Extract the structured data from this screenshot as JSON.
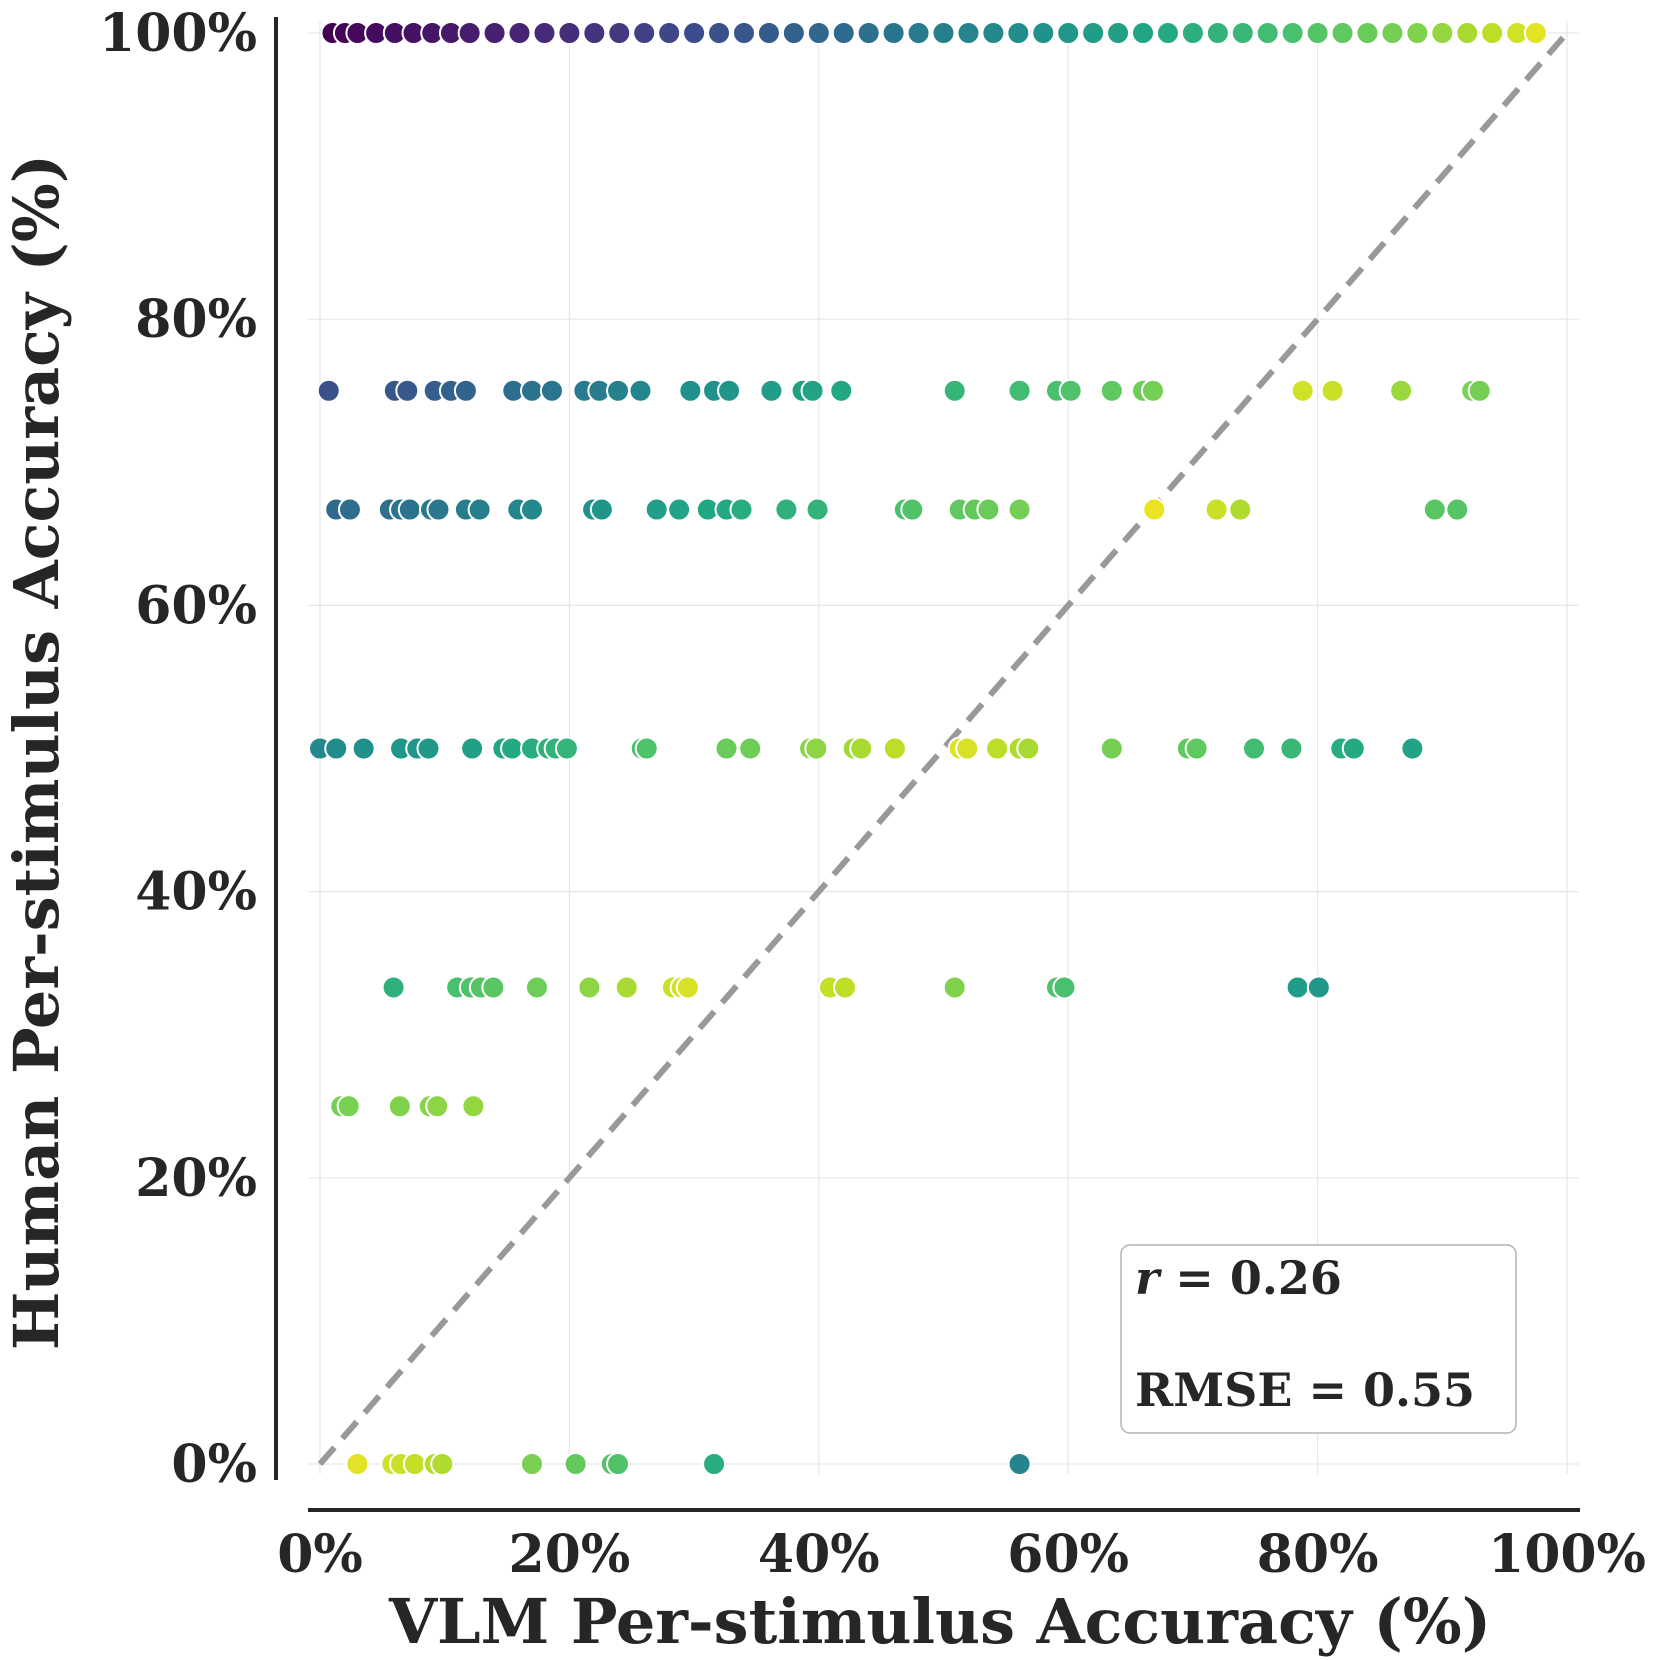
{
  "chart_data": {
    "type": "scatter",
    "title": "",
    "xlabel": "VLM Per-stimulus Accuracy (%)",
    "ylabel": "Human Per-stimulus Accuracy (%)",
    "xlim": [
      0,
      100
    ],
    "ylim": [
      0,
      100
    ],
    "x_ticks": [
      "0%",
      "20%",
      "40%",
      "60%",
      "80%",
      "100%"
    ],
    "y_ticks": [
      "0%",
      "20%",
      "40%",
      "60%",
      "80%",
      "100%"
    ],
    "grid": true,
    "reference_line": "y = x (dashed, gray)",
    "color_scale": "viridis",
    "stats": {
      "r": "r = 0.26",
      "rmse": "RMSE = 0.55"
    },
    "points": [
      {
        "x": 1.0,
        "y": 100,
        "c": 0.0
      },
      {
        "x": 2.0,
        "y": 100,
        "c": 0.01
      },
      {
        "x": 3.0,
        "y": 100,
        "c": 0.02
      },
      {
        "x": 4.5,
        "y": 100,
        "c": 0.03
      },
      {
        "x": 6.0,
        "y": 100,
        "c": 0.04
      },
      {
        "x": 7.5,
        "y": 100,
        "c": 0.05
      },
      {
        "x": 9.0,
        "y": 100,
        "c": 0.06
      },
      {
        "x": 10.5,
        "y": 100,
        "c": 0.07
      },
      {
        "x": 12.0,
        "y": 100,
        "c": 0.08
      },
      {
        "x": 14.0,
        "y": 100,
        "c": 0.09
      },
      {
        "x": 16.0,
        "y": 100,
        "c": 0.1
      },
      {
        "x": 18.0,
        "y": 100,
        "c": 0.12
      },
      {
        "x": 20.0,
        "y": 100,
        "c": 0.13
      },
      {
        "x": 22.0,
        "y": 100,
        "c": 0.15
      },
      {
        "x": 24.0,
        "y": 100,
        "c": 0.17
      },
      {
        "x": 26.0,
        "y": 100,
        "c": 0.19
      },
      {
        "x": 28.0,
        "y": 100,
        "c": 0.21
      },
      {
        "x": 30.0,
        "y": 100,
        "c": 0.23
      },
      {
        "x": 32.0,
        "y": 100,
        "c": 0.25
      },
      {
        "x": 34.0,
        "y": 100,
        "c": 0.27
      },
      {
        "x": 36.0,
        "y": 100,
        "c": 0.29
      },
      {
        "x": 38.0,
        "y": 100,
        "c": 0.31
      },
      {
        "x": 40.0,
        "y": 100,
        "c": 0.33
      },
      {
        "x": 42.0,
        "y": 100,
        "c": 0.35
      },
      {
        "x": 44.0,
        "y": 100,
        "c": 0.37
      },
      {
        "x": 46.0,
        "y": 100,
        "c": 0.39
      },
      {
        "x": 48.0,
        "y": 100,
        "c": 0.41
      },
      {
        "x": 50.0,
        "y": 100,
        "c": 0.43
      },
      {
        "x": 52.0,
        "y": 100,
        "c": 0.45
      },
      {
        "x": 54.0,
        "y": 100,
        "c": 0.47
      },
      {
        "x": 56.0,
        "y": 100,
        "c": 0.49
      },
      {
        "x": 58.0,
        "y": 100,
        "c": 0.51
      },
      {
        "x": 60.0,
        "y": 100,
        "c": 0.53
      },
      {
        "x": 62.0,
        "y": 100,
        "c": 0.55
      },
      {
        "x": 64.0,
        "y": 100,
        "c": 0.57
      },
      {
        "x": 66.0,
        "y": 100,
        "c": 0.59
      },
      {
        "x": 68.0,
        "y": 100,
        "c": 0.61
      },
      {
        "x": 70.0,
        "y": 100,
        "c": 0.63
      },
      {
        "x": 72.0,
        "y": 100,
        "c": 0.65
      },
      {
        "x": 74.0,
        "y": 100,
        "c": 0.67
      },
      {
        "x": 76.0,
        "y": 100,
        "c": 0.69
      },
      {
        "x": 78.0,
        "y": 100,
        "c": 0.71
      },
      {
        "x": 80.0,
        "y": 100,
        "c": 0.73
      },
      {
        "x": 82.0,
        "y": 100,
        "c": 0.75
      },
      {
        "x": 84.0,
        "y": 100,
        "c": 0.77
      },
      {
        "x": 86.0,
        "y": 100,
        "c": 0.79
      },
      {
        "x": 88.0,
        "y": 100,
        "c": 0.81
      },
      {
        "x": 90.0,
        "y": 100,
        "c": 0.84
      },
      {
        "x": 92.0,
        "y": 100,
        "c": 0.87
      },
      {
        "x": 94.0,
        "y": 100,
        "c": 0.9
      },
      {
        "x": 96.0,
        "y": 100,
        "c": 0.93
      },
      {
        "x": 97.5,
        "y": 100,
        "c": 0.96
      },
      {
        "x": 0.7,
        "y": 75,
        "c": 0.25
      },
      {
        "x": 6.0,
        "y": 75,
        "c": 0.27
      },
      {
        "x": 7.0,
        "y": 75,
        "c": 0.28
      },
      {
        "x": 9.2,
        "y": 75,
        "c": 0.3
      },
      {
        "x": 10.5,
        "y": 75,
        "c": 0.31
      },
      {
        "x": 11.7,
        "y": 75,
        "c": 0.32
      },
      {
        "x": 15.5,
        "y": 75,
        "c": 0.36
      },
      {
        "x": 17.0,
        "y": 75,
        "c": 0.38
      },
      {
        "x": 18.6,
        "y": 75,
        "c": 0.39
      },
      {
        "x": 21.2,
        "y": 75,
        "c": 0.41
      },
      {
        "x": 22.4,
        "y": 75,
        "c": 0.42
      },
      {
        "x": 23.9,
        "y": 75,
        "c": 0.44
      },
      {
        "x": 25.7,
        "y": 75,
        "c": 0.46
      },
      {
        "x": 29.7,
        "y": 75,
        "c": 0.5
      },
      {
        "x": 31.6,
        "y": 75,
        "c": 0.51
      },
      {
        "x": 32.8,
        "y": 75,
        "c": 0.52
      },
      {
        "x": 36.2,
        "y": 75,
        "c": 0.55
      },
      {
        "x": 38.7,
        "y": 75,
        "c": 0.57
      },
      {
        "x": 39.5,
        "y": 75,
        "c": 0.58
      },
      {
        "x": 41.8,
        "y": 75,
        "c": 0.6
      },
      {
        "x": 50.9,
        "y": 75,
        "c": 0.66
      },
      {
        "x": 56.1,
        "y": 75,
        "c": 0.69
      },
      {
        "x": 59.1,
        "y": 75,
        "c": 0.71
      },
      {
        "x": 60.2,
        "y": 75,
        "c": 0.72
      },
      {
        "x": 63.5,
        "y": 75,
        "c": 0.75
      },
      {
        "x": 66.0,
        "y": 75,
        "c": 0.78
      },
      {
        "x": 66.8,
        "y": 75,
        "c": 0.79
      },
      {
        "x": 78.8,
        "y": 75,
        "c": 0.93
      },
      {
        "x": 81.2,
        "y": 75,
        "c": 0.92
      },
      {
        "x": 86.7,
        "y": 75,
        "c": 0.85
      },
      {
        "x": 92.4,
        "y": 75,
        "c": 0.8
      },
      {
        "x": 93.0,
        "y": 75,
        "c": 0.79
      },
      {
        "x": 1.3,
        "y": 66.7,
        "c": 0.35
      },
      {
        "x": 2.4,
        "y": 66.7,
        "c": 0.36
      },
      {
        "x": 5.6,
        "y": 66.7,
        "c": 0.37
      },
      {
        "x": 6.5,
        "y": 66.7,
        "c": 0.38
      },
      {
        "x": 7.2,
        "y": 66.7,
        "c": 0.38
      },
      {
        "x": 8.9,
        "y": 66.7,
        "c": 0.4
      },
      {
        "x": 9.5,
        "y": 66.7,
        "c": 0.4
      },
      {
        "x": 11.7,
        "y": 66.7,
        "c": 0.42
      },
      {
        "x": 12.8,
        "y": 66.7,
        "c": 0.43
      },
      {
        "x": 15.9,
        "y": 66.7,
        "c": 0.46
      },
      {
        "x": 17.0,
        "y": 66.7,
        "c": 0.47
      },
      {
        "x": 21.9,
        "y": 66.7,
        "c": 0.51
      },
      {
        "x": 22.6,
        "y": 66.7,
        "c": 0.52
      },
      {
        "x": 27.0,
        "y": 66.7,
        "c": 0.56
      },
      {
        "x": 28.8,
        "y": 66.7,
        "c": 0.58
      },
      {
        "x": 31.1,
        "y": 66.7,
        "c": 0.6
      },
      {
        "x": 32.6,
        "y": 66.7,
        "c": 0.61
      },
      {
        "x": 33.8,
        "y": 66.7,
        "c": 0.62
      },
      {
        "x": 37.4,
        "y": 66.7,
        "c": 0.64
      },
      {
        "x": 39.9,
        "y": 66.7,
        "c": 0.65
      },
      {
        "x": 46.9,
        "y": 66.7,
        "c": 0.71
      },
      {
        "x": 47.5,
        "y": 66.7,
        "c": 0.72
      },
      {
        "x": 51.3,
        "y": 66.7,
        "c": 0.75
      },
      {
        "x": 52.5,
        "y": 66.7,
        "c": 0.76
      },
      {
        "x": 53.6,
        "y": 66.7,
        "c": 0.77
      },
      {
        "x": 56.1,
        "y": 66.7,
        "c": 0.79
      },
      {
        "x": 66.9,
        "y": 66.7,
        "c": 0.97
      },
      {
        "x": 71.9,
        "y": 66.7,
        "c": 0.92
      },
      {
        "x": 73.8,
        "y": 66.7,
        "c": 0.88
      },
      {
        "x": 89.4,
        "y": 66.7,
        "c": 0.74
      },
      {
        "x": 91.2,
        "y": 66.7,
        "c": 0.73
      },
      {
        "x": 0.0,
        "y": 50,
        "c": 0.47
      },
      {
        "x": 1.3,
        "y": 50,
        "c": 0.48
      },
      {
        "x": 3.5,
        "y": 50,
        "c": 0.5
      },
      {
        "x": 6.5,
        "y": 50,
        "c": 0.52
      },
      {
        "x": 7.8,
        "y": 50,
        "c": 0.53
      },
      {
        "x": 8.7,
        "y": 50,
        "c": 0.54
      },
      {
        "x": 12.2,
        "y": 50,
        "c": 0.57
      },
      {
        "x": 14.7,
        "y": 50,
        "c": 0.6
      },
      {
        "x": 15.4,
        "y": 50,
        "c": 0.61
      },
      {
        "x": 17.0,
        "y": 50,
        "c": 0.62
      },
      {
        "x": 18.3,
        "y": 50,
        "c": 0.64
      },
      {
        "x": 18.9,
        "y": 50,
        "c": 0.65
      },
      {
        "x": 19.8,
        "y": 50,
        "c": 0.66
      },
      {
        "x": 25.8,
        "y": 50,
        "c": 0.71
      },
      {
        "x": 26.2,
        "y": 50,
        "c": 0.72
      },
      {
        "x": 32.6,
        "y": 50,
        "c": 0.77
      },
      {
        "x": 34.5,
        "y": 50,
        "c": 0.78
      },
      {
        "x": 39.3,
        "y": 50,
        "c": 0.82
      },
      {
        "x": 39.8,
        "y": 50,
        "c": 0.83
      },
      {
        "x": 42.8,
        "y": 50,
        "c": 0.86
      },
      {
        "x": 43.4,
        "y": 50,
        "c": 0.87
      },
      {
        "x": 46.1,
        "y": 50,
        "c": 0.9
      },
      {
        "x": 51.3,
        "y": 50,
        "c": 0.95
      },
      {
        "x": 51.9,
        "y": 50,
        "c": 0.94
      },
      {
        "x": 54.3,
        "y": 50,
        "c": 0.9
      },
      {
        "x": 56.1,
        "y": 50,
        "c": 0.88
      },
      {
        "x": 56.8,
        "y": 50,
        "c": 0.87
      },
      {
        "x": 63.5,
        "y": 50,
        "c": 0.79
      },
      {
        "x": 69.6,
        "y": 50,
        "c": 0.75
      },
      {
        "x": 70.3,
        "y": 50,
        "c": 0.75
      },
      {
        "x": 74.9,
        "y": 50,
        "c": 0.69
      },
      {
        "x": 77.9,
        "y": 50,
        "c": 0.67
      },
      {
        "x": 81.9,
        "y": 50,
        "c": 0.62
      },
      {
        "x": 82.9,
        "y": 50,
        "c": 0.61
      },
      {
        "x": 87.6,
        "y": 50,
        "c": 0.58
      },
      {
        "x": 5.9,
        "y": 33.3,
        "c": 0.64
      },
      {
        "x": 11.0,
        "y": 33.3,
        "c": 0.71
      },
      {
        "x": 12.1,
        "y": 33.3,
        "c": 0.72
      },
      {
        "x": 12.9,
        "y": 33.3,
        "c": 0.73
      },
      {
        "x": 13.9,
        "y": 33.3,
        "c": 0.74
      },
      {
        "x": 17.4,
        "y": 33.3,
        "c": 0.78
      },
      {
        "x": 21.6,
        "y": 33.3,
        "c": 0.83
      },
      {
        "x": 24.6,
        "y": 33.3,
        "c": 0.87
      },
      {
        "x": 28.3,
        "y": 33.3,
        "c": 0.92
      },
      {
        "x": 29.0,
        "y": 33.3,
        "c": 0.93
      },
      {
        "x": 29.5,
        "y": 33.3,
        "c": 0.94
      },
      {
        "x": 40.9,
        "y": 33.3,
        "c": 0.91
      },
      {
        "x": 42.1,
        "y": 33.3,
        "c": 0.9
      },
      {
        "x": 50.9,
        "y": 33.3,
        "c": 0.81
      },
      {
        "x": 59.1,
        "y": 33.3,
        "c": 0.72
      },
      {
        "x": 59.7,
        "y": 33.3,
        "c": 0.71
      },
      {
        "x": 78.4,
        "y": 33.3,
        "c": 0.55
      },
      {
        "x": 80.1,
        "y": 33.3,
        "c": 0.53
      },
      {
        "x": 1.7,
        "y": 25,
        "c": 0.79
      },
      {
        "x": 2.3,
        "y": 25,
        "c": 0.8
      },
      {
        "x": 6.4,
        "y": 25,
        "c": 0.81
      },
      {
        "x": 8.8,
        "y": 25,
        "c": 0.82
      },
      {
        "x": 9.4,
        "y": 25,
        "c": 0.83
      },
      {
        "x": 12.3,
        "y": 25,
        "c": 0.84
      },
      {
        "x": 3.0,
        "y": 0,
        "c": 0.96
      },
      {
        "x": 5.8,
        "y": 0,
        "c": 0.93
      },
      {
        "x": 6.5,
        "y": 0,
        "c": 0.92
      },
      {
        "x": 7.6,
        "y": 0,
        "c": 0.91
      },
      {
        "x": 9.2,
        "y": 0,
        "c": 0.89
      },
      {
        "x": 9.8,
        "y": 0,
        "c": 0.88
      },
      {
        "x": 17.0,
        "y": 0,
        "c": 0.8
      },
      {
        "x": 20.5,
        "y": 0,
        "c": 0.76
      },
      {
        "x": 23.4,
        "y": 0,
        "c": 0.73
      },
      {
        "x": 23.9,
        "y": 0,
        "c": 0.72
      },
      {
        "x": 31.6,
        "y": 0,
        "c": 0.62
      },
      {
        "x": 56.1,
        "y": 0,
        "c": 0.45
      }
    ]
  }
}
